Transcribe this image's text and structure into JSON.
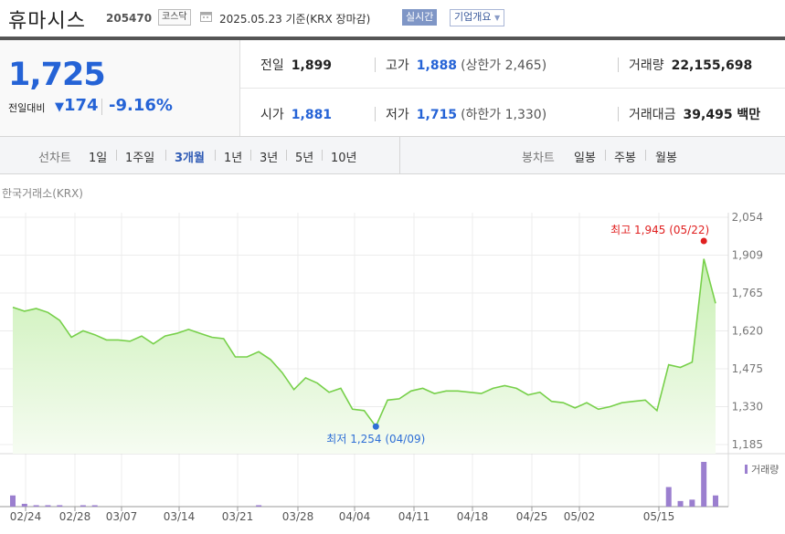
{
  "header": {
    "stock_name": "휴마시스",
    "stock_code": "205470",
    "market": "코스닥",
    "calendar_icon": "calendar-icon",
    "date_text": "2025.05.23  기준(KRX 장마감)",
    "realtime_label": "실시간",
    "company_info_label": "기업개요"
  },
  "summary": {
    "current_price": "1,725",
    "compare_label": "전일대비",
    "change_dir": "▼",
    "change": "174",
    "change_pct": "-9.16%",
    "prev_close_label": "전일",
    "prev_close": "1,899",
    "high_label": "고가",
    "high": "1,888",
    "upper_limit": "(상한가 2,465)",
    "volume_label": "거래량",
    "volume": "22,155,698",
    "open_label": "시가",
    "open": "1,881",
    "low_label": "저가",
    "low": "1,715",
    "lower_limit": "(하한가 1,330)",
    "trade_value_label": "거래대금",
    "trade_value": "39,495 백만"
  },
  "nav": {
    "line_label": "선차트",
    "line_ranges": [
      "1일",
      "1주일",
      "3개월",
      "1년",
      "3년",
      "5년",
      "10년"
    ],
    "selected": "3개월",
    "candle_label": "봉차트",
    "candle_ranges": [
      "일봉",
      "주봉",
      "월봉"
    ]
  },
  "exchange_label": "한국거래소(KRX)",
  "colors": {
    "accent": "#2563d6",
    "line": "#77d04a",
    "fill_top": "#c9f0b4",
    "fill_bottom": "#f4fcef",
    "high_marker": "#e02020",
    "low_marker": "#2f6fd6",
    "volume_bar": "#9b7fcf"
  },
  "chart_data": {
    "type": "area",
    "y_ticks": [
      "2,054",
      "1,909",
      "1,765",
      "1,620",
      "1,475",
      "1,330",
      "1,185"
    ],
    "ylim": [
      1185,
      2054
    ],
    "x_tick_labels": [
      "02/24",
      "02/28",
      "03/07",
      "03/14",
      "03/21",
      "03/28",
      "04/04",
      "04/11",
      "04/18",
      "04/25",
      "05/02",
      "05/15"
    ],
    "high_annotation": "최고 1,945 (05/22)",
    "low_annotation": "최저 1,254 (04/09)",
    "volume_legend": "거래량",
    "series": [
      {
        "values": [
          1710,
          1695,
          1705,
          1690,
          1660,
          1595,
          1620,
          1605,
          1585,
          1585,
          1580,
          1600,
          1570,
          1600,
          1610,
          1625,
          1610,
          1595,
          1590,
          1520,
          1520,
          1540,
          1510,
          1460,
          1395,
          1440,
          1420,
          1385,
          1400,
          1320,
          1315,
          1254,
          1355,
          1360,
          1390,
          1400,
          1380,
          1390,
          1390,
          1385,
          1380,
          1400,
          1410,
          1400,
          1375,
          1385,
          1350,
          1345,
          1325,
          1345,
          1320,
          1330,
          1345,
          1350,
          1355,
          1315,
          1490,
          1480,
          1500,
          1895,
          1725
        ]
      }
    ],
    "volume": [
      4,
      1,
      0.5,
      0.5,
      0.5,
      0,
      0.3,
      0.3,
      0,
      0,
      0,
      0,
      0,
      0,
      0,
      0,
      0,
      0,
      0,
      0,
      0,
      0.5,
      0,
      0,
      0,
      0,
      0,
      0,
      0,
      0,
      0,
      0,
      0,
      0,
      0,
      0,
      0,
      0,
      0,
      0,
      0,
      0,
      0,
      0,
      0,
      0,
      0,
      0,
      0,
      0,
      0,
      0,
      0,
      0,
      0,
      0,
      7,
      2,
      2.5,
      16,
      4
    ]
  }
}
